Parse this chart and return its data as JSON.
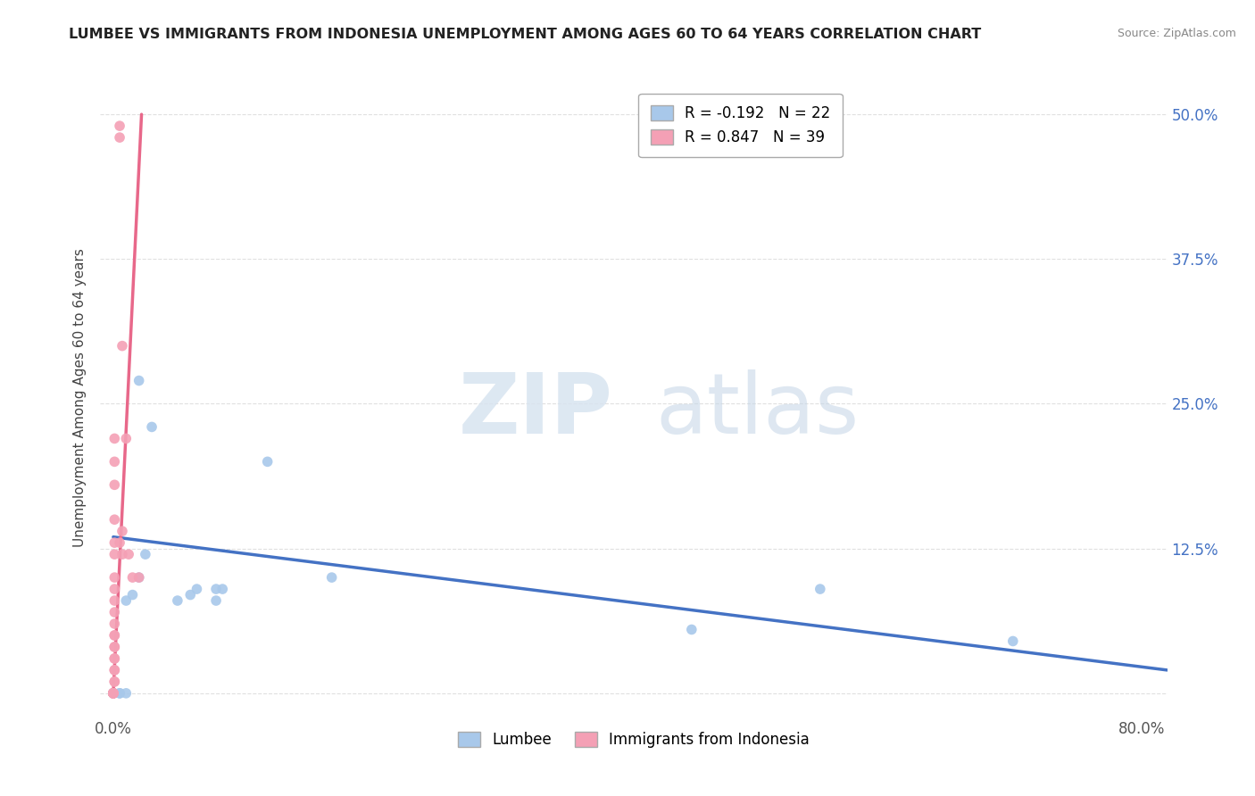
{
  "title": "LUMBEE VS IMMIGRANTS FROM INDONESIA UNEMPLOYMENT AMONG AGES 60 TO 64 YEARS CORRELATION CHART",
  "source": "Source: ZipAtlas.com",
  "ylabel": "Unemployment Among Ages 60 to 64 years",
  "watermark_zip": "ZIP",
  "watermark_atlas": "atlas",
  "lumbee_R": -0.192,
  "lumbee_N": 22,
  "indonesia_R": 0.847,
  "indonesia_N": 39,
  "lumbee_color": "#a8c8ea",
  "indonesia_color": "#f4a0b5",
  "lumbee_line_color": "#4472c4",
  "indonesia_line_color": "#e8688a",
  "xlim": [
    -0.01,
    0.82
  ],
  "ylim": [
    -0.02,
    0.53
  ],
  "xtick_positions": [
    0.0,
    0.8
  ],
  "xticklabels": [
    "0.0%",
    "80.0%"
  ],
  "ytick_positions": [
    0.0,
    0.125,
    0.25,
    0.375,
    0.5
  ],
  "yticklabels_right": [
    "",
    "12.5%",
    "25.0%",
    "37.5%",
    "50.0%"
  ],
  "lumbee_trend_x": [
    0.0,
    0.82
  ],
  "lumbee_trend_y": [
    0.135,
    0.02
  ],
  "indonesia_trend_x": [
    0.0,
    0.022
  ],
  "indonesia_trend_y": [
    0.0,
    0.5
  ],
  "lumbee_points": [
    [
      0.0,
      0.0
    ],
    [
      0.0,
      0.0
    ],
    [
      0.005,
      0.0
    ],
    [
      0.01,
      0.0
    ],
    [
      0.015,
      0.085
    ],
    [
      0.02,
      0.27
    ],
    [
      0.02,
      0.1
    ],
    [
      0.025,
      0.12
    ],
    [
      0.03,
      0.23
    ],
    [
      0.05,
      0.08
    ],
    [
      0.06,
      0.085
    ],
    [
      0.065,
      0.09
    ],
    [
      0.08,
      0.09
    ],
    [
      0.085,
      0.09
    ],
    [
      0.12,
      0.2
    ],
    [
      0.17,
      0.1
    ],
    [
      0.01,
      0.08
    ],
    [
      0.005,
      0.0
    ],
    [
      0.55,
      0.09
    ],
    [
      0.7,
      0.045
    ],
    [
      0.45,
      0.055
    ],
    [
      0.08,
      0.08
    ]
  ],
  "indonesia_points": [
    [
      0.0,
      0.0
    ],
    [
      0.0,
      0.0
    ],
    [
      0.0,
      0.0
    ],
    [
      0.0,
      0.0
    ],
    [
      0.0,
      0.0
    ],
    [
      0.0,
      0.0
    ],
    [
      0.0,
      0.0
    ],
    [
      0.0,
      0.0
    ],
    [
      0.001,
      0.01
    ],
    [
      0.001,
      0.01
    ],
    [
      0.001,
      0.02
    ],
    [
      0.001,
      0.02
    ],
    [
      0.001,
      0.03
    ],
    [
      0.001,
      0.03
    ],
    [
      0.001,
      0.04
    ],
    [
      0.001,
      0.04
    ],
    [
      0.001,
      0.05
    ],
    [
      0.001,
      0.05
    ],
    [
      0.001,
      0.06
    ],
    [
      0.001,
      0.07
    ],
    [
      0.001,
      0.08
    ],
    [
      0.001,
      0.09
    ],
    [
      0.001,
      0.1
    ],
    [
      0.001,
      0.12
    ],
    [
      0.001,
      0.13
    ],
    [
      0.001,
      0.15
    ],
    [
      0.001,
      0.18
    ],
    [
      0.001,
      0.2
    ],
    [
      0.001,
      0.22
    ],
    [
      0.005,
      0.13
    ],
    [
      0.005,
      0.48
    ],
    [
      0.005,
      0.49
    ],
    [
      0.007,
      0.12
    ],
    [
      0.007,
      0.14
    ],
    [
      0.007,
      0.3
    ],
    [
      0.01,
      0.22
    ],
    [
      0.012,
      0.12
    ],
    [
      0.015,
      0.1
    ],
    [
      0.02,
      0.1
    ]
  ],
  "background_color": "#ffffff",
  "grid_color": "#e0e0e0",
  "right_axis_color": "#4472c4"
}
